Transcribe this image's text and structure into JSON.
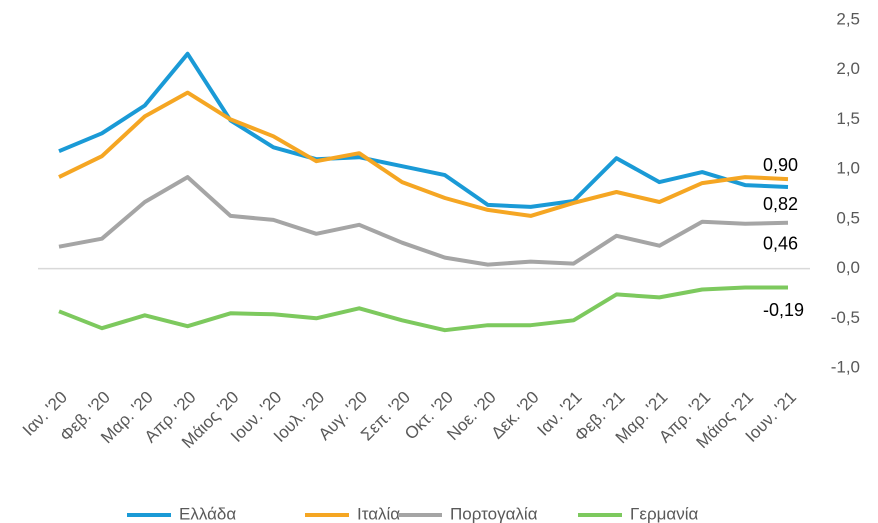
{
  "chart_data": {
    "type": "line",
    "categories": [
      "Ιαν. '20",
      "Φεβ. '20",
      "Μαρ. '20",
      "Απρ. '20",
      "Μάιος '20",
      "Ιουν. '20",
      "Ιουλ. '20",
      "Αυγ. '20",
      "Σεπ. '20",
      "Οκτ. '20",
      "Νοε. '20",
      "Δεκ. '20",
      "Ιαν. '21",
      "Φεβ. '21",
      "Μαρ. '21",
      "Απρ. '21",
      "Μάιος '21",
      "Ιουν. '21"
    ],
    "series": [
      {
        "name": "Ελλάδα",
        "color": "#1a9ad6",
        "values": [
          1.18,
          1.36,
          1.64,
          2.16,
          1.49,
          1.22,
          1.1,
          1.12,
          1.03,
          0.94,
          0.64,
          0.62,
          0.68,
          1.11,
          0.87,
          0.97,
          0.84,
          0.82
        ],
        "value_labels": [
          null,
          null,
          null,
          null,
          null,
          null,
          null,
          null,
          null,
          null,
          null,
          null,
          null,
          null,
          null,
          null,
          null,
          "0,82"
        ]
      },
      {
        "name": "Ιταλία",
        "color": "#f5a623",
        "values": [
          0.92,
          1.13,
          1.53,
          1.77,
          1.5,
          1.33,
          1.08,
          1.16,
          0.87,
          0.71,
          0.59,
          0.53,
          0.66,
          0.77,
          0.67,
          0.86,
          0.92,
          0.9
        ],
        "value_labels": [
          null,
          null,
          null,
          null,
          null,
          null,
          null,
          null,
          null,
          null,
          null,
          null,
          null,
          null,
          null,
          null,
          null,
          "0,90"
        ]
      },
      {
        "name": "Πορτογαλία",
        "color": "#a5a5a5",
        "values": [
          0.22,
          0.3,
          0.67,
          0.92,
          0.53,
          0.49,
          0.35,
          0.44,
          0.26,
          0.11,
          0.04,
          0.07,
          0.05,
          0.33,
          0.23,
          0.47,
          0.45,
          0.46
        ],
        "value_labels": [
          null,
          null,
          null,
          null,
          null,
          null,
          null,
          null,
          null,
          null,
          null,
          null,
          null,
          null,
          null,
          null,
          null,
          "0,46"
        ]
      },
      {
        "name": "Γερμανία",
        "color": "#7dc95e",
        "values": [
          -0.43,
          -0.6,
          -0.47,
          -0.58,
          -0.45,
          -0.46,
          -0.5,
          -0.4,
          -0.52,
          -0.62,
          -0.57,
          -0.57,
          -0.52,
          -0.26,
          -0.29,
          -0.21,
          -0.19,
          -0.19
        ],
        "value_labels": [
          null,
          null,
          null,
          null,
          null,
          null,
          null,
          null,
          null,
          null,
          null,
          null,
          null,
          null,
          null,
          null,
          null,
          "-0,19"
        ]
      }
    ],
    "ylim": [
      -1.0,
      2.5
    ],
    "yticks": [
      {
        "value": -1.0,
        "label": "-1,0"
      },
      {
        "value": -0.5,
        "label": "-0,5"
      },
      {
        "value": 0.0,
        "label": "0,0"
      },
      {
        "value": 0.5,
        "label": "0,5"
      },
      {
        "value": 1.0,
        "label": "1,0"
      },
      {
        "value": 1.5,
        "label": "1,5"
      },
      {
        "value": 2.0,
        "label": "2,0"
      },
      {
        "value": 2.5,
        "label": "2,5"
      }
    ],
    "yaxis_side": "right",
    "grid": false,
    "legend": "bottom"
  }
}
